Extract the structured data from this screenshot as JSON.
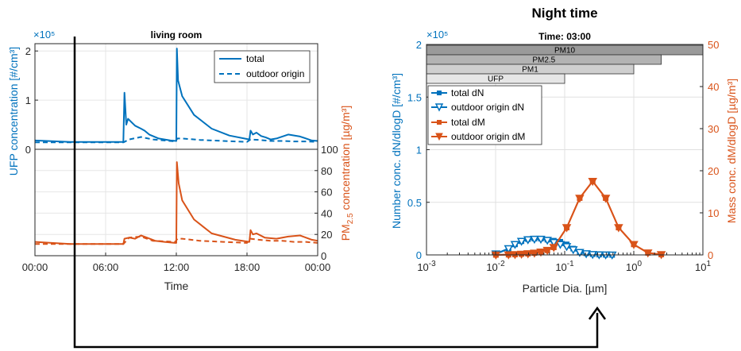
{
  "colors": {
    "blue": "#0072BD",
    "orange": "#D95319",
    "axis": "#262626"
  },
  "chart_data": [
    {
      "type": "line",
      "title": "living room",
      "xlabel": "Time",
      "ylabel_top": "UFP concentration [#/cm³]",
      "ylabel_bottom_main": "PM",
      "ylabel_bottom_sub": "2.5",
      "ylabel_bottom_rest": " concentration [µg/m³]",
      "exponent_label": "×10⁵",
      "x_ticks": [
        "00:00",
        "06:00",
        "12:00",
        "18:00",
        "00:00"
      ],
      "x_hours": [
        0,
        6,
        12,
        18,
        24
      ],
      "y_top_ticks": [
        "0",
        "1",
        "2"
      ],
      "y_top_range": [
        0,
        2.1
      ],
      "y_bottom_ticks": [
        "0",
        "20",
        "40",
        "60",
        "80",
        "100"
      ],
      "y_bottom_range": [
        0,
        100
      ],
      "legend": [
        "total",
        "outdoor origin"
      ],
      "series": [
        {
          "name": "total",
          "panel": "top",
          "style": "solid",
          "x": [
            0,
            3,
            7.5,
            7.6,
            7.75,
            7.9,
            8.5,
            9,
            9.3,
            9.7,
            10.5,
            11.5,
            12,
            12.05,
            12.15,
            12.5,
            13.5,
            15,
            16.5,
            18.2,
            18.3,
            18.5,
            18.8,
            19.2,
            19.6,
            20,
            20.5,
            21.5,
            22.5,
            23.5,
            24
          ],
          "y": [
            0.18,
            0.15,
            0.15,
            1.15,
            0.5,
            0.62,
            0.48,
            0.42,
            0.38,
            0.3,
            0.22,
            0.18,
            0.17,
            2.05,
            1.4,
            1.08,
            0.7,
            0.42,
            0.28,
            0.2,
            0.38,
            0.3,
            0.34,
            0.27,
            0.24,
            0.2,
            0.22,
            0.3,
            0.26,
            0.18,
            0.17
          ]
        },
        {
          "name": "outdoor origin",
          "panel": "top",
          "style": "dashed",
          "x": [
            0,
            7.5,
            8,
            9,
            10,
            11.9,
            12.1,
            12.5,
            14,
            16,
            18,
            18.3,
            19,
            20,
            21,
            22,
            23,
            24
          ],
          "y": [
            0.14,
            0.14,
            0.2,
            0.25,
            0.2,
            0.16,
            0.22,
            0.22,
            0.19,
            0.17,
            0.15,
            0.2,
            0.19,
            0.17,
            0.17,
            0.16,
            0.16,
            0.15
          ]
        },
        {
          "name": "total",
          "panel": "bottom",
          "style": "solid",
          "x": [
            0,
            3,
            7.5,
            7.6,
            8,
            8.5,
            9,
            9.5,
            10.2,
            11,
            11.9,
            12,
            12.05,
            12.2,
            12.5,
            13.5,
            15,
            17,
            18.2,
            18.3,
            18.5,
            18.8,
            19.5,
            20.5,
            21.5,
            22.5,
            23.5,
            24
          ],
          "y": [
            13,
            11,
            11,
            16,
            17,
            16,
            19,
            17,
            14,
            13,
            12,
            12,
            88,
            68,
            52,
            34,
            21,
            15,
            13,
            24,
            20,
            21,
            17,
            16,
            18,
            19,
            15,
            14
          ]
        },
        {
          "name": "outdoor origin",
          "panel": "bottom",
          "style": "dashed",
          "x": [
            0,
            7.5,
            8,
            9,
            10,
            11.9,
            12.1,
            12.5,
            14,
            16,
            18,
            18.3,
            19,
            20,
            21,
            22,
            23,
            24
          ],
          "y": [
            11,
            11,
            17,
            18,
            14,
            13,
            16,
            16,
            14,
            13,
            12,
            16,
            15,
            14,
            14,
            13,
            13,
            12
          ]
        }
      ]
    },
    {
      "type": "line",
      "suptitle": "Night time",
      "title": "Time: 03:00",
      "xlabel": "Particle Dia. [µm]",
      "ylabel_left": "Number conc. dN/dlogD [#/cm³]",
      "ylabel_right": "Mass conc. dM/dlogD [µg/m³]",
      "exponent_label": "×10⁵",
      "x_scale": "log",
      "x_range": [
        0.001,
        10
      ],
      "x_ticks_exp": [
        -3,
        -2,
        -1,
        0,
        1
      ],
      "x_tick_base": "10",
      "y_left_ticks": [
        "0",
        "0.5",
        "1",
        "1.5",
        "2"
      ],
      "y_left_range": [
        0,
        2
      ],
      "y_right_ticks": [
        "0",
        "10",
        "20",
        "30",
        "40",
        "50"
      ],
      "y_right_range": [
        0,
        50
      ],
      "size_bars": [
        {
          "label": "PM10",
          "upper": 10,
          "level": 0
        },
        {
          "label": "PM2.5",
          "upper": 2.5,
          "level": 1
        },
        {
          "label": "PM1",
          "upper": 1,
          "level": 2
        },
        {
          "label": "UFP",
          "upper": 0.1,
          "level": 3
        }
      ],
      "legend": [
        "total dN",
        "outdoor origin dN",
        "total dM",
        "outdoor origin dM"
      ],
      "series": [
        {
          "name": "total dN",
          "axis": "left",
          "marker": "square",
          "x": [
            0.0101,
            0.0154,
            0.0191,
            0.0237,
            0.0294,
            0.0365,
            0.0452,
            0.0561,
            0.0696,
            0.0864,
            0.107,
            0.133,
            0.165,
            0.205,
            0.254,
            0.315,
            0.392,
            0.486
          ],
          "y": [
            0.01,
            0.06,
            0.1,
            0.13,
            0.15,
            0.155,
            0.155,
            0.145,
            0.135,
            0.125,
            0.1,
            0.06,
            0.03,
            0.015,
            0.007,
            0.003,
            0.001,
            0
          ]
        },
        {
          "name": "outdoor origin dN",
          "axis": "left",
          "marker": "triangle-down",
          "x": [
            0.0101,
            0.0154,
            0.0191,
            0.0237,
            0.0294,
            0.0365,
            0.0452,
            0.0561,
            0.0696,
            0.0864,
            0.107,
            0.133,
            0.165,
            0.205,
            0.254,
            0.315,
            0.392,
            0.486
          ],
          "y": [
            0.01,
            0.06,
            0.1,
            0.13,
            0.145,
            0.15,
            0.15,
            0.14,
            0.12,
            0.1,
            0.08,
            0.05,
            0.025,
            0.012,
            0.005,
            0.002,
            0.001,
            0
          ]
        },
        {
          "name": "total dM",
          "axis": "right",
          "marker": "square",
          "x": [
            0.0101,
            0.0154,
            0.0191,
            0.0237,
            0.0294,
            0.0365,
            0.0452,
            0.0561,
            0.0696,
            0.107,
            0.165,
            0.254,
            0.392,
            0.603,
            1.0,
            1.6,
            2.5
          ],
          "y": [
            0,
            0.05,
            0.1,
            0.2,
            0.3,
            0.45,
            0.7,
            1.1,
            1.8,
            6.5,
            13.5,
            17.5,
            13.5,
            6.5,
            2.5,
            0.5,
            0.1
          ]
        },
        {
          "name": "outdoor origin dM",
          "axis": "right",
          "marker": "triangle-down",
          "x": [
            0.0101,
            0.0154,
            0.0191,
            0.0237,
            0.0294,
            0.0365,
            0.0452,
            0.0561,
            0.0696,
            0.107,
            0.165,
            0.254,
            0.392,
            0.603,
            1.0,
            1.6,
            2.5
          ],
          "y": [
            0,
            0.05,
            0.1,
            0.2,
            0.3,
            0.45,
            0.7,
            1.1,
            1.8,
            6.5,
            13.5,
            17.5,
            13.5,
            6.5,
            2.5,
            0.5,
            0.1
          ]
        }
      ]
    }
  ]
}
